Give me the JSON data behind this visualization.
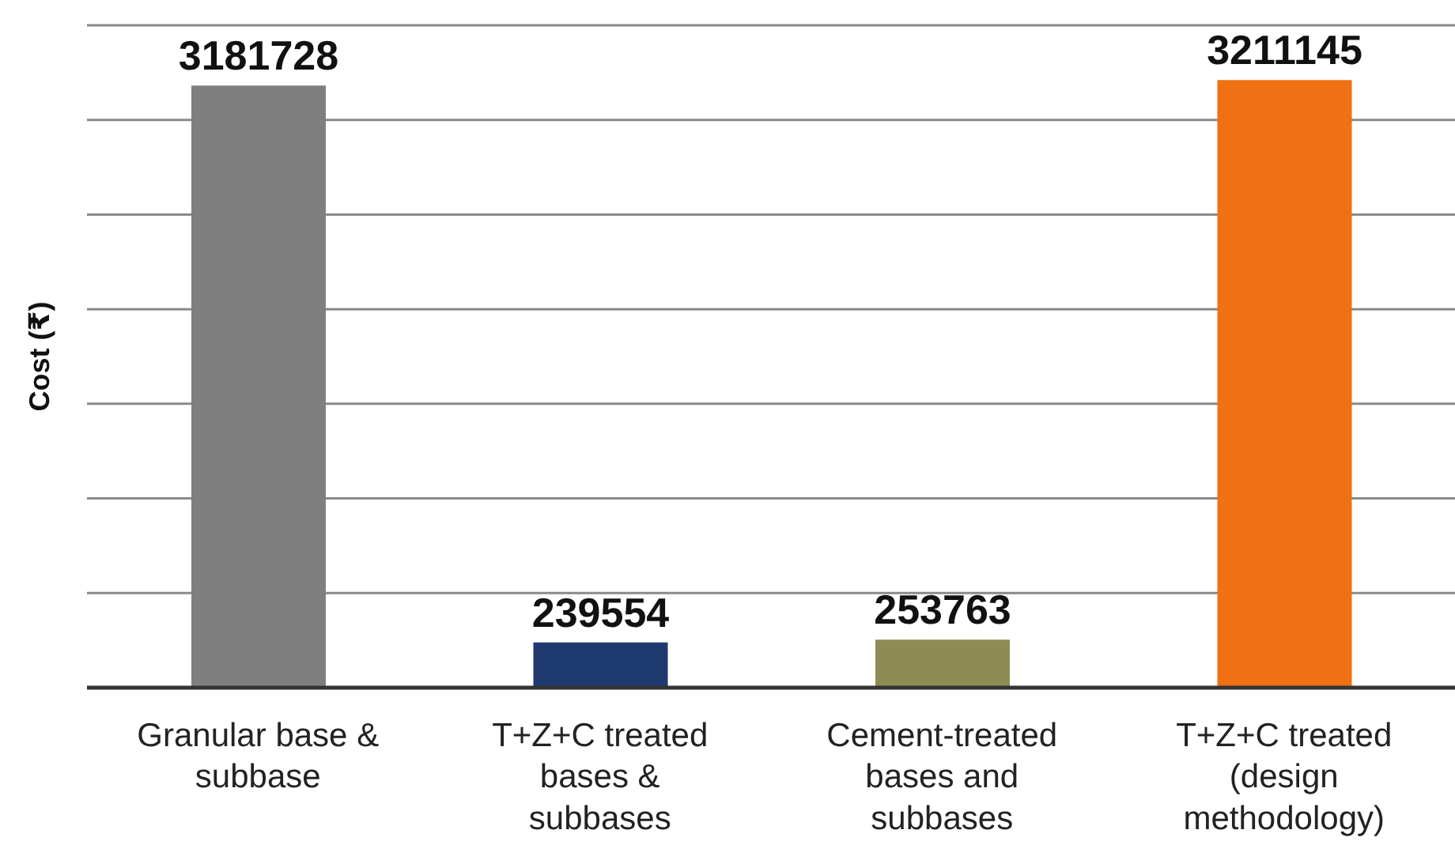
{
  "chart_data": {
    "type": "bar",
    "ylabel": "Cost (₹)",
    "categories": [
      "Granular base & subbase",
      "T+Z+C treated bases & subbases",
      "Cement-treated bases and subbases",
      "T+Z+C treated (design methodology)"
    ],
    "values": [
      3181728,
      239554,
      253763,
      3211145
    ],
    "colors": [
      "#7f7f7f",
      "#1e3a6e",
      "#8f8b55",
      "#f07014"
    ],
    "grid": "y",
    "tick_labels": "x",
    "data_labels": true
  }
}
